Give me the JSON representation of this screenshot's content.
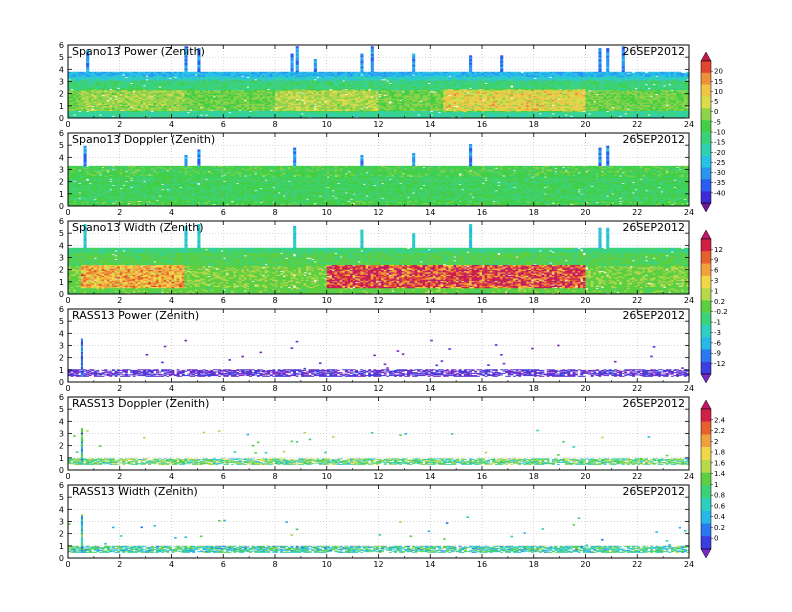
{
  "figure": {
    "date": "26SEP2012"
  },
  "chart_data": [
    {
      "type": "heatmap",
      "title": "Spano13 Power (Zenith)",
      "date": "26SEP2012",
      "xlim": [
        0,
        24
      ],
      "ylim": [
        0,
        6
      ],
      "xticks": [
        "0",
        "2",
        "4",
        "6",
        "8",
        "10",
        "12",
        "14",
        "16",
        "18",
        "20",
        "22",
        "24"
      ],
      "yticks": [
        "0",
        "1",
        "2",
        "3",
        "4",
        "5",
        "6"
      ],
      "grid": true,
      "colorbar": {
        "group": "power",
        "labels": [
          "20",
          "15",
          "10",
          "5",
          "0",
          "-5",
          "-10",
          "-15",
          "-20",
          "-25",
          "-30",
          "-35",
          "-40"
        ]
      },
      "data": {
        "top_km": 3.8,
        "layers": [
          {
            "from": 0.0,
            "to": 0.5,
            "value": -15
          },
          {
            "from": 0.5,
            "to": 2.3,
            "value": -5
          },
          {
            "from": 2.3,
            "to": 3.0,
            "value": -12
          },
          {
            "from": 3.0,
            "to": 3.4,
            "value": -18
          },
          {
            "from": 3.4,
            "to": 3.8,
            "value": -23
          }
        ],
        "enhancement": [
          {
            "from_h": 0.5,
            "to_h": 4.5,
            "value": 3
          },
          {
            "from_h": 8.0,
            "to_h": 12.0,
            "value": 5
          },
          {
            "from_h": 14.5,
            "to_h": 20.0,
            "value": 10
          }
        ],
        "spikes_h": [
          0.7,
          4.5,
          5.0,
          8.6,
          8.8,
          9.5,
          11.3,
          11.7,
          13.3,
          15.5,
          16.7,
          20.5,
          20.8,
          21.4
        ]
      }
    },
    {
      "type": "heatmap",
      "title": "Spano13 Doppler (Zenith)",
      "date": "26SEP2012",
      "xlim": [
        0,
        24
      ],
      "ylim": [
        0,
        6
      ],
      "xticks": [
        "0",
        "2",
        "4",
        "6",
        "8",
        "10",
        "12",
        "14",
        "16",
        "18",
        "20",
        "22",
        "24"
      ],
      "yticks": [
        "0",
        "1",
        "2",
        "3",
        "4",
        "5",
        "6"
      ],
      "grid": true,
      "colorbar": {
        "group": "power",
        "labels": [
          "20",
          "15",
          "10",
          "5",
          "0",
          "-5",
          "-10",
          "-15",
          "-20",
          "-25",
          "-30",
          "-35",
          "-40"
        ]
      },
      "data": {
        "top_km": 3.3,
        "layers": [
          {
            "from": 0.0,
            "to": 3.3,
            "value": -8
          }
        ],
        "enhancement": [
          {
            "from_h": 0.0,
            "to_h": 24.0,
            "value": -2
          }
        ],
        "spikes_h": [
          0.6,
          4.5,
          5.0,
          8.7,
          11.3,
          13.3,
          15.5,
          20.5,
          20.8
        ]
      }
    },
    {
      "type": "heatmap",
      "title": "Spano13 Width (Zenith)",
      "date": "26SEP2012",
      "xlim": [
        0,
        24
      ],
      "ylim": [
        0,
        6
      ],
      "xticks": [
        "0",
        "2",
        "4",
        "6",
        "8",
        "10",
        "12",
        "14",
        "16",
        "18",
        "20",
        "22",
        "24"
      ],
      "yticks": [
        "0",
        "1",
        "2",
        "3",
        "4",
        "5",
        "6"
      ],
      "grid": true,
      "colorbar": {
        "group": "width",
        "labels": [
          "12",
          "9",
          "6",
          "3",
          "1",
          "0.2",
          "-0.2",
          "-1",
          "-3",
          "-6",
          "-9",
          "-12"
        ]
      },
      "data": {
        "top_km": 3.8,
        "layers": [
          {
            "from": 0.0,
            "to": 0.5,
            "value": 0.0
          },
          {
            "from": 0.5,
            "to": 2.3,
            "value": 0.6
          },
          {
            "from": 2.3,
            "to": 3.4,
            "value": -0.6
          },
          {
            "from": 3.4,
            "to": 3.8,
            "value": -2
          }
        ],
        "enhancement": [
          {
            "from_h": 0.5,
            "to_h": 4.5,
            "value": 6
          },
          {
            "from_h": 10.0,
            "to_h": 20.0,
            "value": 10
          }
        ],
        "spikes_h": [
          0.6,
          4.5,
          5.0,
          8.7,
          11.3,
          13.3,
          15.5,
          20.5,
          20.8
        ]
      }
    },
    {
      "type": "heatmap",
      "title": "RASS13 Power (Zenith)",
      "date": "26SEP2012",
      "xlim": [
        0,
        24
      ],
      "ylim": [
        0,
        6
      ],
      "xticks": [
        "0",
        "2",
        "4",
        "6",
        "8",
        "10",
        "12",
        "14",
        "16",
        "18",
        "20",
        "22",
        "24"
      ],
      "yticks": [
        "0",
        "1",
        "2",
        "3",
        "4",
        "5",
        "6"
      ],
      "grid": true,
      "colorbar": {
        "group": "width",
        "labels": [
          "12",
          "9",
          "6",
          "3",
          "1",
          "0.2",
          "-0.2",
          "-1",
          "-3",
          "-6",
          "-9",
          "-12"
        ]
      },
      "data": {
        "band": [
          0.45,
          1.05
        ],
        "value": -11,
        "spike_h": 0.5,
        "spike_top": 3.5
      }
    },
    {
      "type": "heatmap",
      "title": "RASS13 Doppler (Zenith)",
      "date": "26SEP2012",
      "xlim": [
        0,
        24
      ],
      "ylim": [
        0,
        6
      ],
      "xticks": [
        "0",
        "2",
        "4",
        "6",
        "8",
        "10",
        "12",
        "14",
        "16",
        "18",
        "20",
        "22",
        "24"
      ],
      "yticks": [
        "0",
        "1",
        "2",
        "3",
        "4",
        "5",
        "6"
      ],
      "grid": true,
      "colorbar": {
        "group": "rass",
        "labels": [
          "2.4",
          "2.2",
          "2",
          "1.8",
          "1.6",
          "1.4",
          "1",
          "0.8",
          "0.6",
          "0.4",
          "0.2",
          "0"
        ]
      },
      "data": {
        "band": [
          0.45,
          0.95
        ],
        "value": 1.1,
        "spike_h": 0.5,
        "spike_top": 3.4
      }
    },
    {
      "type": "heatmap",
      "title": "RASS13 Width (Zenith)",
      "date": "26SEP2012",
      "xlim": [
        0,
        24
      ],
      "ylim": [
        0,
        6
      ],
      "xticks": [
        "0",
        "2",
        "4",
        "6",
        "8",
        "10",
        "12",
        "14",
        "16",
        "18",
        "20",
        "22",
        "24"
      ],
      "yticks": [
        "0",
        "1",
        "2",
        "3",
        "4",
        "5",
        "6"
      ],
      "grid": true,
      "colorbar": {
        "group": "rass",
        "labels": [
          "2.4",
          "2.2",
          "2",
          "1.8",
          "1.6",
          "1.4",
          "1",
          "0.8",
          "0.6",
          "0.4",
          "0.2",
          "0"
        ]
      },
      "data": {
        "band": [
          0.45,
          1.0
        ],
        "value": 0.9,
        "spike_h": 0.5,
        "spike_top": 3.5
      }
    }
  ],
  "colorbars": {
    "power": {
      "labels": [
        "20",
        "15",
        "10",
        "5",
        "0",
        "-5",
        "-10",
        "-15",
        "-20",
        "-25",
        "-30",
        "-35",
        "-40"
      ],
      "min": -42.5,
      "max": 22.5,
      "colors": [
        "#6a1b9a",
        "#3b2bd6",
        "#2a5ef0",
        "#2b95f2",
        "#27c3e6",
        "#2fd1b0",
        "#3bd27a",
        "#43cf43",
        "#8ed34a",
        "#d8dc4d",
        "#f1c444",
        "#ee8f3a",
        "#e0452f",
        "#c21b4a"
      ]
    },
    "width": {
      "labels": [
        "12",
        "9",
        "6",
        "3",
        "1",
        "0.2",
        "-0.2",
        "-1",
        "-3",
        "-6",
        "-9",
        "-12"
      ],
      "min": -13,
      "max": 13,
      "colors": [
        "#7a28c8",
        "#3b3ee0",
        "#2a78f0",
        "#27b8e8",
        "#2ccfc0",
        "#3bd27a",
        "#5ad040",
        "#b6d84a",
        "#f1d848",
        "#f1a03e",
        "#e6602e",
        "#d21f44",
        "#c2186a"
      ]
    },
    "rass": {
      "labels": [
        "2.4",
        "2.2",
        "2",
        "1.8",
        "1.6",
        "1.4",
        "1",
        "0.8",
        "0.6",
        "0.4",
        "0.2",
        "0"
      ],
      "min": -0.1,
      "max": 2.5,
      "colors": [
        "#7a28c8",
        "#3b3ee0",
        "#2a78f0",
        "#27b8e8",
        "#2ccfc0",
        "#3bd27a",
        "#5ad040",
        "#b6d84a",
        "#f1d848",
        "#f1a03e",
        "#e6602e",
        "#d21f44",
        "#c2186a"
      ]
    }
  }
}
